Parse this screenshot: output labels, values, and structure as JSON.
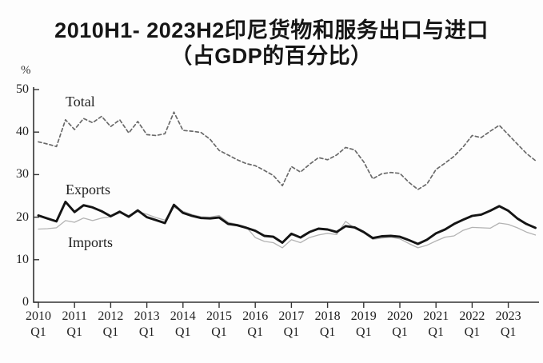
{
  "title": {
    "line1": "2010H1- 2023H2印尼货物和服务出口与进口",
    "line2": "（占GDP的百分比）"
  },
  "chart_data": {
    "type": "line",
    "title": "2010H1- 2023H2印尼货物和服务出口与进口（占GDP的百分比）",
    "ylabel": "%",
    "xlabel": "",
    "ylim": [
      0,
      50
    ],
    "y_ticks": [
      50,
      40,
      30,
      20,
      10,
      0
    ],
    "grid": false,
    "legend_position": "inline-labels",
    "x_tick_years": [
      "2010",
      "2011",
      "2012",
      "2013",
      "2014",
      "2015",
      "2016",
      "2017",
      "2018",
      "2019",
      "2020",
      "2021",
      "2022",
      "2023"
    ],
    "x_tick_sublabel": "Q1",
    "x_frequency": "quarterly",
    "x_start": "2010Q1",
    "x_end": "2023Q4",
    "series": [
      {
        "name": "Total",
        "style": "dashed",
        "color": "#6a6a6a",
        "values": [
          37.7,
          37.2,
          36.6,
          42.9,
          40.6,
          43.2,
          42.2,
          43.7,
          41.3,
          42.9,
          39.8,
          42.5,
          39.4,
          39.2,
          39.6,
          44.7,
          40.4,
          40.2,
          39.9,
          38.3,
          35.7,
          34.6,
          33.5,
          32.6,
          32.1,
          31.0,
          29.8,
          27.4,
          31.9,
          30.6,
          32.4,
          34.0,
          33.5,
          34.6,
          36.4,
          35.8,
          33.0,
          29.0,
          30.2,
          30.5,
          30.3,
          28.2,
          26.5,
          27.8,
          31.2,
          32.7,
          34.3,
          36.5,
          39.2,
          38.7,
          40.2,
          41.6,
          39.4,
          37.2,
          35.0,
          33.3
        ]
      },
      {
        "name": "Exports",
        "style": "solid-thick",
        "color": "#141414",
        "values": [
          20.4,
          19.7,
          19.0,
          23.6,
          21.2,
          22.8,
          22.3,
          21.4,
          20.2,
          21.3,
          20.1,
          21.6,
          20.0,
          19.3,
          18.6,
          22.9,
          21.0,
          20.3,
          19.8,
          19.7,
          19.9,
          18.4,
          18.1,
          17.5,
          16.8,
          15.6,
          15.4,
          14.0,
          16.1,
          15.2,
          16.5,
          17.3,
          17.1,
          16.5,
          17.9,
          17.6,
          16.5,
          15.1,
          15.5,
          15.6,
          15.4,
          14.6,
          13.7,
          14.7,
          16.2,
          17.1,
          18.4,
          19.4,
          20.3,
          20.6,
          21.5,
          22.6,
          21.5,
          19.7,
          18.4,
          17.5
        ]
      },
      {
        "name": "Imports",
        "style": "solid-thin",
        "color": "#b3b3b3",
        "values": [
          17.2,
          17.3,
          17.5,
          19.2,
          18.8,
          19.8,
          19.2,
          19.8,
          20.1,
          21.0,
          20.4,
          21.3,
          20.7,
          19.9,
          19.3,
          22.3,
          21.4,
          20.6,
          20.1,
          20.0,
          20.4,
          18.8,
          18.3,
          17.7,
          15.2,
          14.3,
          14.0,
          12.8,
          14.7,
          14.0,
          15.2,
          15.8,
          16.2,
          15.9,
          19.0,
          17.4,
          16.3,
          14.8,
          15.1,
          15.3,
          14.9,
          13.8,
          12.8,
          13.4,
          14.4,
          15.3,
          15.6,
          16.9,
          17.6,
          17.5,
          17.4,
          18.6,
          18.3,
          17.5,
          16.5,
          15.8
        ]
      }
    ],
    "axis_color": "#333333"
  }
}
